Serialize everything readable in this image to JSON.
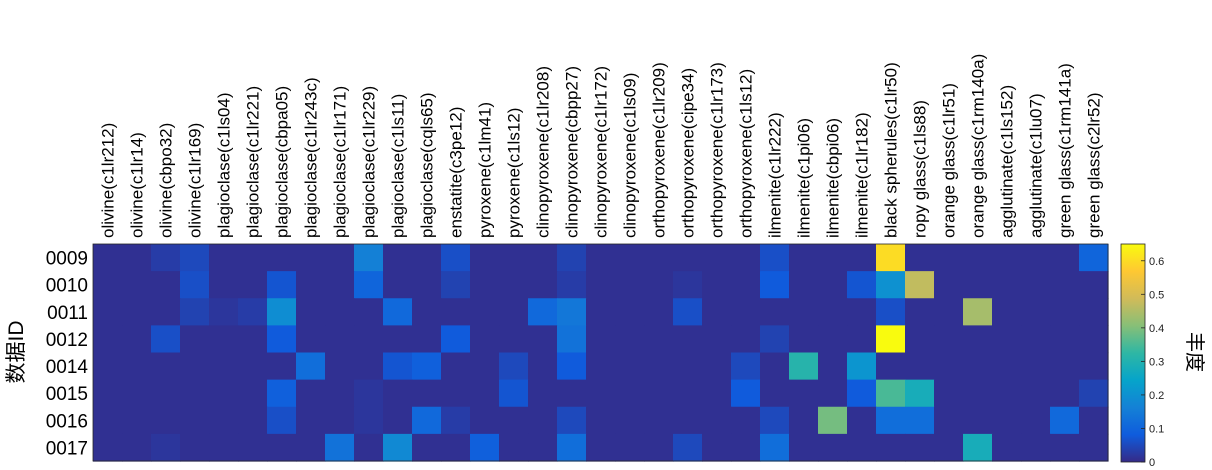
{
  "chart_data": {
    "type": "heatmap",
    "ylabel": "数据ID",
    "colorbar_label": "丰度",
    "clim": [
      0,
      0.65
    ],
    "colorbar_ticks": [
      "0",
      "0.1",
      "0.2",
      "0.3",
      "0.4",
      "0.5",
      "0.6"
    ],
    "colorbar_tick_values": [
      0,
      0.1,
      0.2,
      0.3,
      0.4,
      0.5,
      0.6
    ],
    "colormap": "parula",
    "columns": [
      "olivine(c1lr212)",
      "olivine(c1lr14)",
      "olivine(cbpo32)",
      "olivine(c1lr169)",
      "plagioclase(c1ls04)",
      "plagioclase(c1lr221)",
      "plagioclase(cbpa05)",
      "plagioclase(c1lr243c)",
      "plagioclase(c1lr171)",
      "plagioclase(c1lr229)",
      "plagioclase(c1ls11)",
      "plagioclase(cqls65)",
      "enstatite(c3pe12)",
      "pyroxene(c1lm41)",
      "pyroxene(c1ls12)",
      "clinopyroxene(c1lr208)",
      "clinopyroxene(cbpp27)",
      "clinopyroxene(c1lr172)",
      "clinopyroxene(c1ls09)",
      "orthopyroxene(c1lr209)",
      "orthopyroxene(cipe34)",
      "orthopyroxene(c1lr173)",
      "orthopyroxene(c1ls12)",
      "ilmenite(c1lr222)",
      "ilmenite(c1pi06)",
      "ilmenite(cbpi06)",
      "ilmenite(c1lr182)",
      "black spherules(c1lr50)",
      "ropy glass(c1ls88)",
      "orange glass(c1lr51)",
      "orange glass(c1rm140a)",
      "agglutinate(c1ls152)",
      "agglutinate(c1lu07)",
      "green glass(c1rm141a)",
      "green glass(c2lr52)"
    ],
    "rows": [
      "0009",
      "0010",
      "0011",
      "0012",
      "0014",
      "0015",
      "0016",
      "0017"
    ],
    "values": [
      [
        0.01,
        0.01,
        0.03,
        0.05,
        0.01,
        0.01,
        0.01,
        0.01,
        0.01,
        0.16,
        0.01,
        0.01,
        0.06,
        0.01,
        0.01,
        0.01,
        0.04,
        0.01,
        0.01,
        0.01,
        0.01,
        0.01,
        0.01,
        0.06,
        0.01,
        0.01,
        0.01,
        0.6,
        0.01,
        0.01,
        0.01,
        0.01,
        0.01,
        0.01,
        0.1
      ],
      [
        0.01,
        0.01,
        0.01,
        0.06,
        0.01,
        0.01,
        0.07,
        0.01,
        0.01,
        0.1,
        0.01,
        0.01,
        0.04,
        0.01,
        0.01,
        0.01,
        0.03,
        0.01,
        0.01,
        0.01,
        0.02,
        0.01,
        0.01,
        0.08,
        0.01,
        0.01,
        0.07,
        0.2,
        0.47,
        0.01,
        0.01,
        0.01,
        0.01,
        0.01,
        0.01
      ],
      [
        0.01,
        0.01,
        0.01,
        0.04,
        0.02,
        0.03,
        0.19,
        0.01,
        0.01,
        0.01,
        0.11,
        0.01,
        0.01,
        0.01,
        0.01,
        0.11,
        0.14,
        0.01,
        0.01,
        0.01,
        0.06,
        0.01,
        0.01,
        0.01,
        0.01,
        0.01,
        0.01,
        0.06,
        0.01,
        0.01,
        0.44,
        0.01,
        0.01,
        0.01,
        0.01
      ],
      [
        0.01,
        0.01,
        0.06,
        0.01,
        0.01,
        0.01,
        0.08,
        0.01,
        0.01,
        0.01,
        0.01,
        0.01,
        0.08,
        0.01,
        0.01,
        0.01,
        0.13,
        0.01,
        0.01,
        0.01,
        0.01,
        0.01,
        0.01,
        0.04,
        0.01,
        0.01,
        0.01,
        0.65,
        0.01,
        0.01,
        0.01,
        0.01,
        0.01,
        0.01,
        0.01
      ],
      [
        0.01,
        0.01,
        0.01,
        0.01,
        0.01,
        0.01,
        0.01,
        0.12,
        0.01,
        0.01,
        0.07,
        0.09,
        0.01,
        0.01,
        0.05,
        0.01,
        0.08,
        0.01,
        0.01,
        0.01,
        0.01,
        0.01,
        0.05,
        0.01,
        0.31,
        0.01,
        0.21,
        0.01,
        0.01,
        0.01,
        0.01,
        0.01,
        0.01,
        0.01,
        0.01
      ],
      [
        0.01,
        0.01,
        0.01,
        0.01,
        0.01,
        0.01,
        0.09,
        0.01,
        0.01,
        0.02,
        0.01,
        0.01,
        0.01,
        0.01,
        0.07,
        0.01,
        0.01,
        0.01,
        0.01,
        0.01,
        0.01,
        0.01,
        0.08,
        0.01,
        0.01,
        0.01,
        0.08,
        0.35,
        0.28,
        0.01,
        0.01,
        0.01,
        0.01,
        0.01,
        0.04
      ],
      [
        0.01,
        0.01,
        0.01,
        0.01,
        0.01,
        0.01,
        0.06,
        0.01,
        0.01,
        0.02,
        0.01,
        0.11,
        0.03,
        0.01,
        0.01,
        0.01,
        0.05,
        0.01,
        0.01,
        0.01,
        0.01,
        0.01,
        0.01,
        0.05,
        0.01,
        0.39,
        0.01,
        0.12,
        0.12,
        0.01,
        0.01,
        0.01,
        0.01,
        0.11,
        0.01
      ],
      [
        0.01,
        0.01,
        0.02,
        0.01,
        0.01,
        0.01,
        0.01,
        0.01,
        0.13,
        0.01,
        0.18,
        0.01,
        0.01,
        0.09,
        0.01,
        0.01,
        0.12,
        0.01,
        0.01,
        0.01,
        0.05,
        0.01,
        0.01,
        0.12,
        0.01,
        0.01,
        0.01,
        0.01,
        0.01,
        0.01,
        0.28,
        0.01,
        0.01,
        0.01,
        0.01
      ]
    ]
  }
}
